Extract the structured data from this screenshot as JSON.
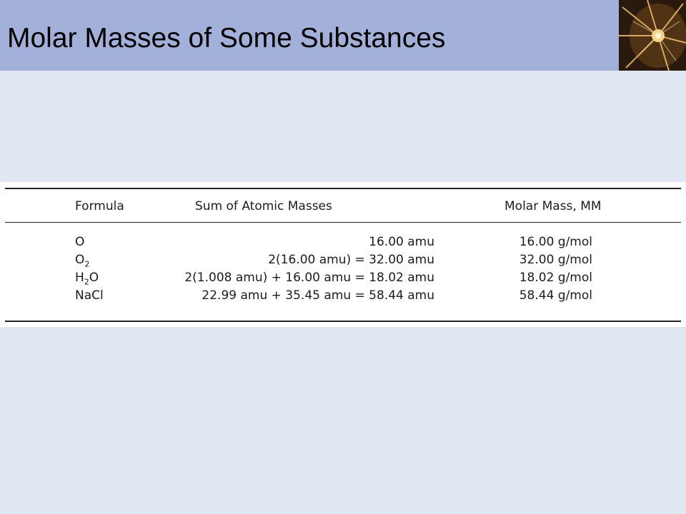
{
  "slide": {
    "title": "Molar Masses of Some Substances"
  },
  "table": {
    "headers": {
      "formula": "Formula",
      "sum": "Sum of Atomic Masses",
      "molar_mass": "Molar Mass, MM"
    },
    "rows": [
      {
        "formula_main": "O",
        "formula_sub": "",
        "formula_tail": "",
        "sum": "16.00 amu",
        "molar_mass": "16.00 g/mol"
      },
      {
        "formula_main": "O",
        "formula_sub": "2",
        "formula_tail": "",
        "sum": "2(16.00 amu) = 32.00 amu",
        "molar_mass": "32.00 g/mol"
      },
      {
        "formula_main": "H",
        "formula_sub": "2",
        "formula_tail": "O",
        "sum": "2(1.008 amu) + 16.00 amu = 18.02 amu",
        "molar_mass": "18.02 g/mol"
      },
      {
        "formula_main": "NaCl",
        "formula_sub": "",
        "formula_tail": "",
        "sum": "22.99 amu + 35.45 amu = 58.44 amu",
        "molar_mass": "58.44 g/mol"
      }
    ]
  },
  "colors": {
    "title_bar": "#a3b1da",
    "background": "#e1e7f2",
    "table_background": "#ffffff"
  },
  "decor": {
    "corner_image": "crystal-photo"
  }
}
